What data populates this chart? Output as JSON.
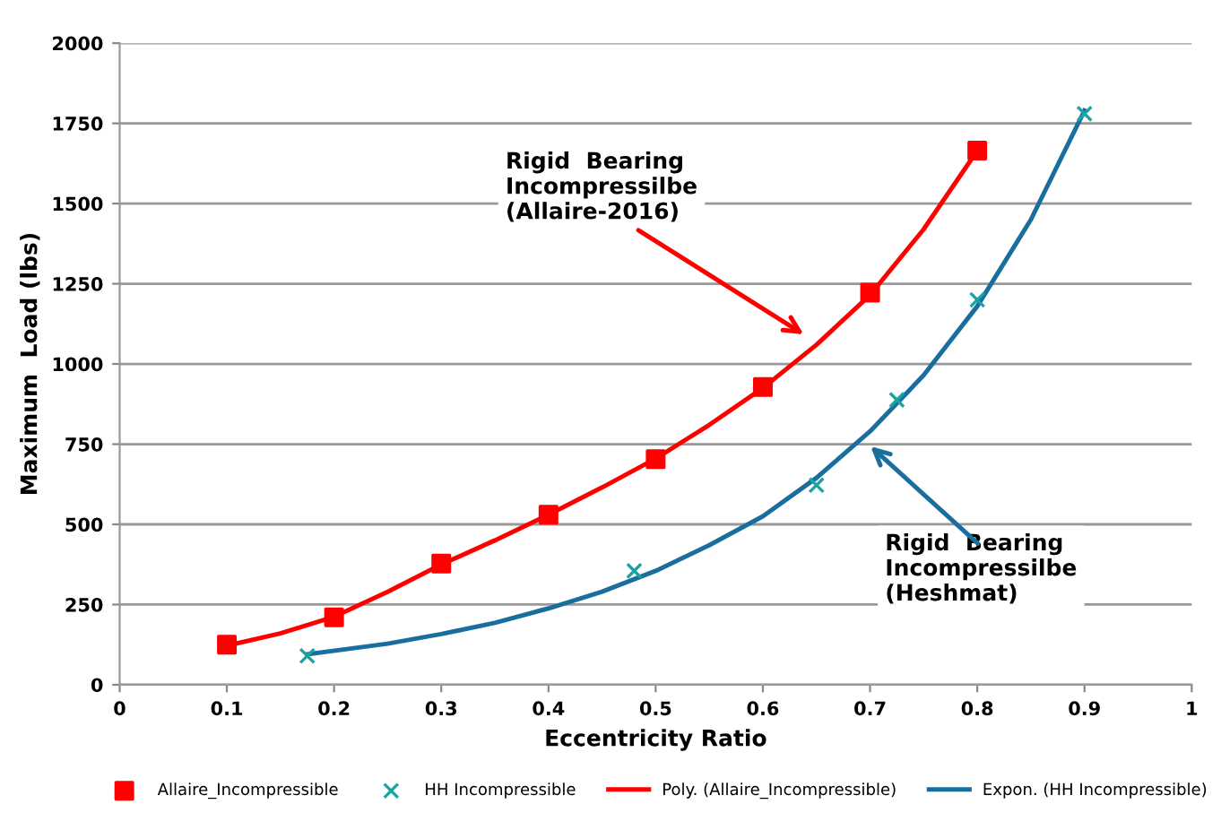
{
  "chart_data": {
    "type": "scatter",
    "xlabel": "Eccentricity Ratio",
    "ylabel": "Maximum  Load (lbs)",
    "series": [
      {
        "name": "Allaire_Incompressible",
        "marker": "square",
        "color": "#ff0000",
        "x": [
          0.1,
          0.2,
          0.3,
          0.4,
          0.5,
          0.6,
          0.7,
          0.8
        ],
        "values": [
          125,
          210,
          378,
          530,
          703,
          928,
          1222,
          1665
        ]
      },
      {
        "name": "HH Incompressible",
        "marker": "cross",
        "color": "#1aa3a3",
        "x": [
          0.175,
          0.48,
          0.65,
          0.725,
          0.8,
          0.9
        ],
        "values": [
          90,
          355,
          622,
          888,
          1200,
          1780
        ]
      },
      {
        "name": "Poly. (Allaire_Incompressible)",
        "type": "line",
        "color": "#ff0000",
        "x": [
          0.1,
          0.15,
          0.2,
          0.25,
          0.3,
          0.35,
          0.4,
          0.45,
          0.5,
          0.55,
          0.6,
          0.65,
          0.7,
          0.75,
          0.8
        ],
        "values": [
          122,
          160,
          212,
          290,
          375,
          450,
          530,
          615,
          705,
          810,
          925,
          1060,
          1215,
          1420,
          1665
        ]
      },
      {
        "name": "Expon. (HH Incompressible)",
        "type": "line",
        "color": "#1a6e9e",
        "x": [
          0.175,
          0.25,
          0.3,
          0.35,
          0.4,
          0.45,
          0.5,
          0.55,
          0.6,
          0.65,
          0.7,
          0.75,
          0.8,
          0.85,
          0.9
        ],
        "values": [
          95,
          128,
          158,
          193,
          238,
          290,
          355,
          435,
          525,
          645,
          790,
          965,
          1180,
          1450,
          1790
        ]
      }
    ],
    "annotations": [
      "Rigid  Bearing\nIncompressilbe\n(Allaire-2016)",
      "Rigid  Bearing\nIncompressilbe\n(Heshmat)"
    ],
    "xlim": [
      0,
      1
    ],
    "xticks": [
      0,
      0.1,
      0.2,
      0.3,
      0.4,
      0.5,
      0.6,
      0.7,
      0.8,
      0.9,
      1
    ],
    "ylim": [
      0,
      2000
    ],
    "yticks": [
      0,
      250,
      500,
      750,
      1000,
      1250,
      1500,
      1750,
      2000
    ],
    "grid": "y",
    "legend": "bottom"
  }
}
